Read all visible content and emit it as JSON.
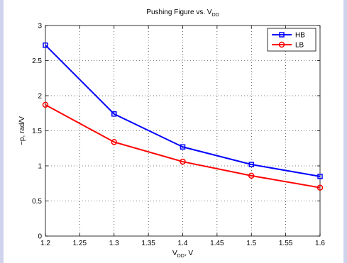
{
  "chart_data": {
    "type": "line",
    "title": "Pushing Figure vs. V",
    "title_sub": "DD",
    "xlabel": "V",
    "xlabel_sub": "DD",
    "xlabel_suffix": ", V",
    "ylabel": "−p, rad/V",
    "xlim": [
      1.2,
      1.6
    ],
    "ylim": [
      0,
      3
    ],
    "x_ticks": [
      1.2,
      1.25,
      1.3,
      1.35,
      1.4,
      1.45,
      1.5,
      1.55,
      1.6
    ],
    "x_tick_labels": [
      "1.2",
      "1.25",
      "1.3",
      "1.35",
      "1.4",
      "1.45",
      "1.5",
      "1.55",
      "1.6"
    ],
    "y_ticks": [
      0,
      0.5,
      1,
      1.5,
      2,
      2.5,
      3
    ],
    "y_tick_labels": [
      "0",
      "0.5",
      "1",
      "1.5",
      "2",
      "2.5",
      "3"
    ],
    "grid": true,
    "legend_position": "top-right",
    "x": [
      1.2,
      1.3,
      1.4,
      1.5,
      1.6
    ],
    "series": [
      {
        "name": "HB",
        "color": "#0000ff",
        "marker": "square",
        "values": [
          2.72,
          1.74,
          1.27,
          1.02,
          0.85
        ]
      },
      {
        "name": "LB",
        "color": "#ff0000",
        "marker": "circle",
        "values": [
          1.87,
          1.34,
          1.06,
          0.86,
          0.69
        ]
      }
    ]
  }
}
